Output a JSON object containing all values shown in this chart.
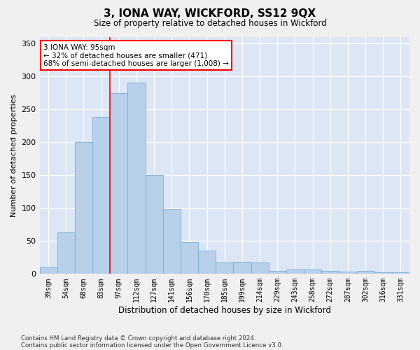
{
  "title": "3, IONA WAY, WICKFORD, SS12 9QX",
  "subtitle": "Size of property relative to detached houses in Wickford",
  "xlabel": "Distribution of detached houses by size in Wickford",
  "ylabel": "Number of detached properties",
  "categories": [
    "39sqm",
    "54sqm",
    "68sqm",
    "83sqm",
    "97sqm",
    "112sqm",
    "127sqm",
    "141sqm",
    "156sqm",
    "170sqm",
    "185sqm",
    "199sqm",
    "214sqm",
    "229sqm",
    "243sqm",
    "258sqm",
    "272sqm",
    "287sqm",
    "302sqm",
    "316sqm",
    "331sqm"
  ],
  "values": [
    10,
    63,
    200,
    238,
    275,
    290,
    150,
    98,
    48,
    35,
    17,
    18,
    17,
    5,
    7,
    7,
    5,
    4,
    5,
    3,
    2
  ],
  "bar_color": "#b8d0ea",
  "bar_edge_color": "#7aadd4",
  "background_color": "#dce6f5",
  "grid_color": "#ffffff",
  "fig_background": "#f0f0f0",
  "ylim": [
    0,
    360
  ],
  "yticks": [
    0,
    50,
    100,
    150,
    200,
    250,
    300,
    350
  ],
  "red_line_x": 3.5,
  "annotation_text": "3 IONA WAY: 95sqm\n← 32% of detached houses are smaller (471)\n68% of semi-detached houses are larger (1,008) →",
  "footer1": "Contains HM Land Registry data © Crown copyright and database right 2024.",
  "footer2": "Contains public sector information licensed under the Open Government Licence v3.0."
}
